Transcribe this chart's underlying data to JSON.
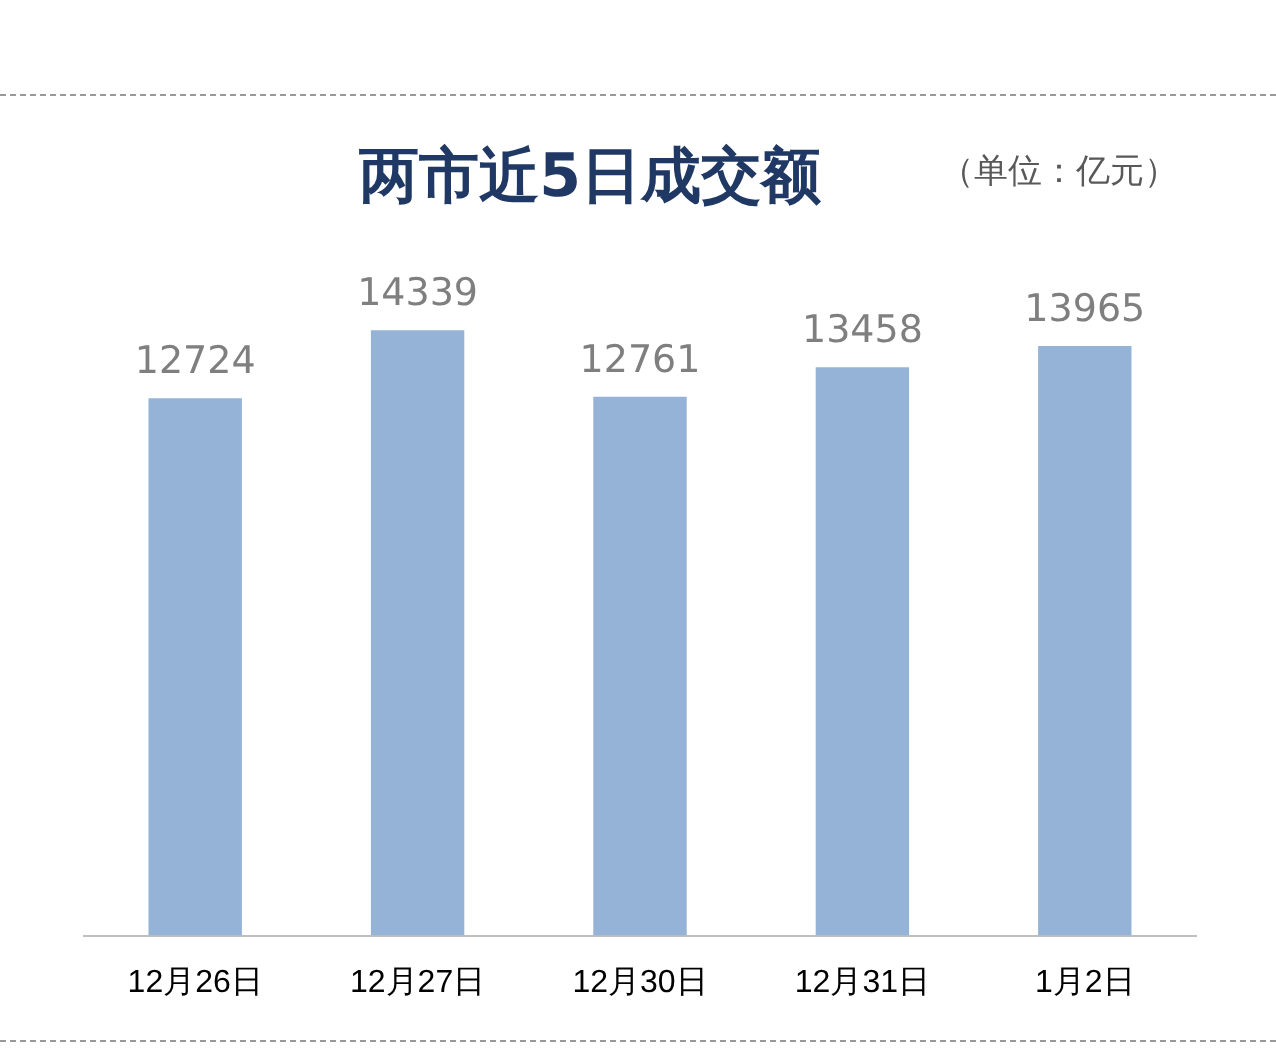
{
  "chart_data": {
    "type": "bar",
    "title": "两市近5日成交额",
    "annotations": [
      "（单位：亿元）"
    ],
    "categories": [
      "12月26日",
      "12月27日",
      "12月30日",
      "12月31日",
      "1月2日"
    ],
    "values": [
      12724,
      14339,
      12761,
      13458,
      13965
    ],
    "color": "#95b3d7",
    "data_labels": true,
    "legend": false,
    "grid": false
  }
}
